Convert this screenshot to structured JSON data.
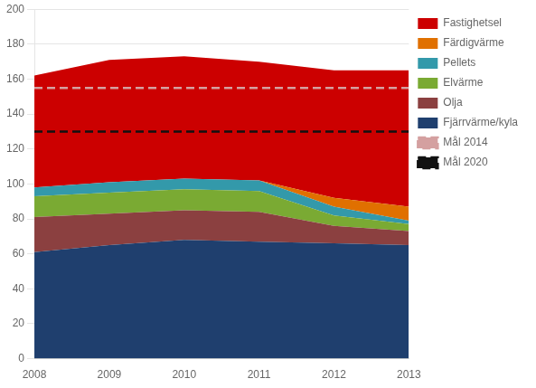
{
  "chart_data": {
    "type": "area",
    "stacked": true,
    "x": [
      2008,
      2009,
      2010,
      2011,
      2012,
      2013
    ],
    "xlim": [
      2008,
      2013
    ],
    "xticks": [
      2008,
      2009,
      2010,
      2011,
      2012,
      2013
    ],
    "ylim": [
      0,
      200
    ],
    "yticks": [
      0,
      20,
      40,
      60,
      80,
      100,
      120,
      140,
      160,
      180,
      200
    ],
    "grid": true,
    "legend": "right",
    "series": [
      {
        "name": "Fjärrvärme/kyla",
        "color": "#1f3f6e",
        "type": "area",
        "values": [
          61,
          65,
          68,
          67,
          66,
          65
        ]
      },
      {
        "name": "Olja",
        "color": "#8b4040",
        "type": "area",
        "values": [
          20,
          18,
          17,
          17,
          10,
          8
        ]
      },
      {
        "name": "Elvärme",
        "color": "#7aaa33",
        "type": "area",
        "values": [
          12,
          12,
          12,
          12,
          6,
          4
        ]
      },
      {
        "name": "Pellets",
        "color": "#3399aa",
        "type": "area",
        "values": [
          5,
          6,
          6,
          6,
          5,
          2
        ]
      },
      {
        "name": "Färdigvärme",
        "color": "#e07000",
        "type": "area",
        "values": [
          0,
          0,
          0,
          0,
          5,
          8
        ]
      },
      {
        "name": "Fastighetsel",
        "color": "#cc0000",
        "type": "area",
        "values": [
          64,
          70,
          70,
          68,
          73,
          78
        ]
      },
      {
        "name": "Mål 2014",
        "color": "#d4a0a0",
        "type": "line",
        "line_style": "dashed",
        "values": [
          155,
          155,
          155,
          155,
          155,
          155
        ]
      },
      {
        "name": "Mål 2020",
        "color": "#111111",
        "type": "line",
        "line_style": "dashed",
        "values": [
          130,
          130,
          130,
          130,
          130,
          130
        ]
      }
    ]
  }
}
